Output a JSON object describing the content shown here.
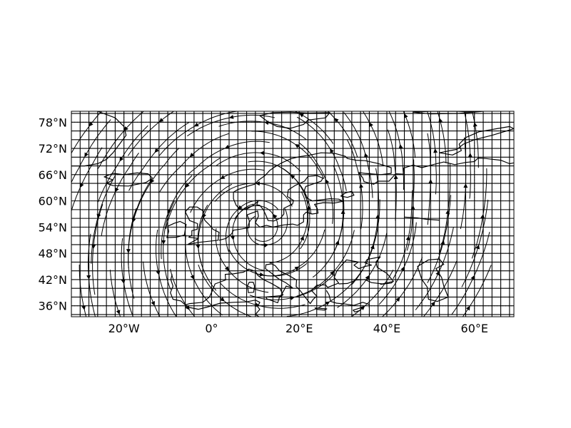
{
  "map": {
    "colors": {
      "frame": "#000000",
      "grid_cells": "#000000",
      "graticule": "#000000",
      "coastline": "#000000",
      "streamlines": "#000000",
      "background": "#ffffff"
    },
    "graticule_style": "dotted",
    "extent": {
      "lon": [
        -32,
        69
      ],
      "lat": [
        33.5,
        80.5
      ]
    },
    "cell_spacing_deg": 2,
    "lon_ticks": [
      {
        "value": -20,
        "label": "20°W"
      },
      {
        "value": 0,
        "label": "0°"
      },
      {
        "value": 20,
        "label": "20°E"
      },
      {
        "value": 40,
        "label": "40°E"
      },
      {
        "value": 60,
        "label": "60°E"
      }
    ],
    "lat_ticks": [
      {
        "value": 36,
        "label": "36°N"
      },
      {
        "value": 42,
        "label": "42°N"
      },
      {
        "value": 48,
        "label": "48°N"
      },
      {
        "value": 54,
        "label": "54°N"
      },
      {
        "value": 60,
        "label": "60°N"
      },
      {
        "value": 66,
        "label": "66°N"
      },
      {
        "value": 72,
        "label": "72°N"
      },
      {
        "value": 78,
        "label": "78°N"
      }
    ]
  }
}
